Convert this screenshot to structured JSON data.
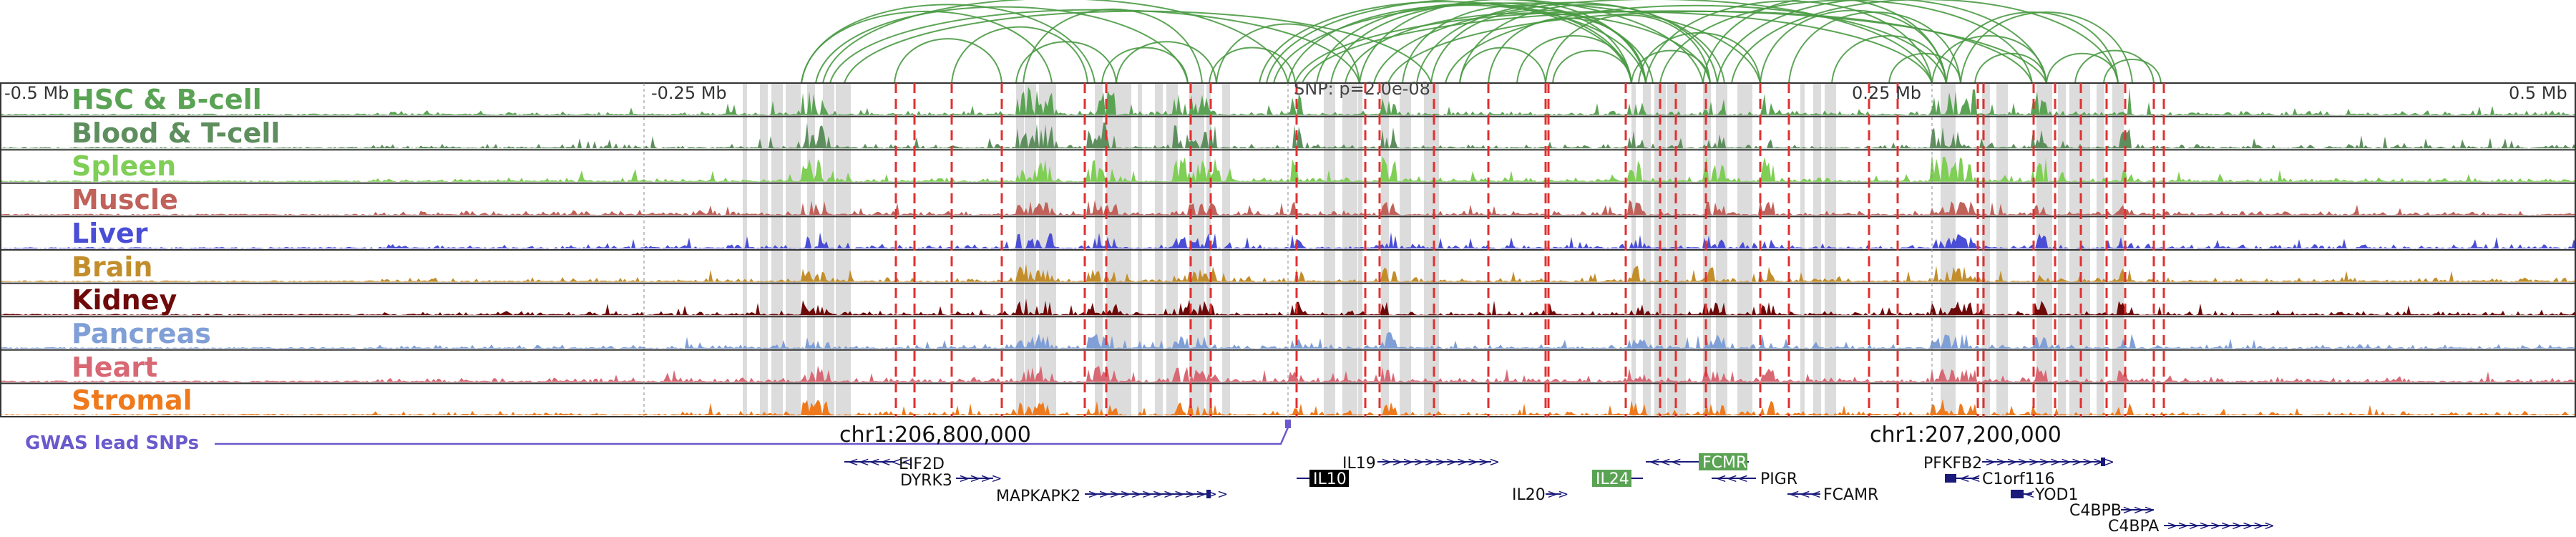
{
  "ruler": {
    "ticks": [
      "-0.5 Mb",
      "-0.25 Mb",
      "SNP: p=2.0e-08",
      "0.25 Mb",
      "0.5 Mb"
    ]
  },
  "tracks": [
    {
      "label": "HSC & B-cell",
      "color": "#5aa354"
    },
    {
      "label": "Blood & T-cell",
      "color": "#5e8e5e"
    },
    {
      "label": "Spleen",
      "color": "#7fce55"
    },
    {
      "label": "Muscle",
      "color": "#c0615a"
    },
    {
      "label": "Liver",
      "color": "#4a4ed6"
    },
    {
      "label": "Brain",
      "color": "#c28e2b"
    },
    {
      "label": "Kidney",
      "color": "#6e0a0a"
    },
    {
      "label": "Pancreas",
      "color": "#7f9fd6"
    },
    {
      "label": "Heart",
      "color": "#d86874"
    },
    {
      "label": "Stromal",
      "color": "#ee7a1d"
    }
  ],
  "gwas": {
    "label": "GWAS lead SNPs",
    "color": "#6a5acd"
  },
  "coords": [
    "chr1:206,800,000",
    "chr1:207,200,000"
  ],
  "genes": [
    {
      "name": "EIF2D",
      "dir": "left",
      "highlight": null
    },
    {
      "name": "DYRK3",
      "dir": "right",
      "highlight": null
    },
    {
      "name": "MAPKAPK2",
      "dir": "right",
      "highlight": null
    },
    {
      "name": "IL10",
      "dir": "left",
      "highlight": "black"
    },
    {
      "name": "IL19",
      "dir": "right",
      "highlight": null
    },
    {
      "name": "IL20",
      "dir": "right",
      "highlight": null
    },
    {
      "name": "IL24",
      "dir": "right",
      "highlight": "green"
    },
    {
      "name": "FCMR",
      "dir": "left",
      "highlight": "green"
    },
    {
      "name": "PIGR",
      "dir": "left",
      "highlight": null
    },
    {
      "name": "FCAMR",
      "dir": "left",
      "highlight": null
    },
    {
      "name": "PFKFB2",
      "dir": "right",
      "highlight": null
    },
    {
      "name": "C1orf116",
      "dir": "left",
      "highlight": null
    },
    {
      "name": "YOD1",
      "dir": "left",
      "highlight": null
    },
    {
      "name": "C4BPB",
      "dir": "right",
      "highlight": null
    },
    {
      "name": "C4BPA",
      "dir": "right",
      "highlight": null
    }
  ],
  "colors": {
    "arc": "#4a9a44",
    "snp_line": "#e03030",
    "highlight_band": "#dcdcdc",
    "gene": "#1a1a7a"
  }
}
